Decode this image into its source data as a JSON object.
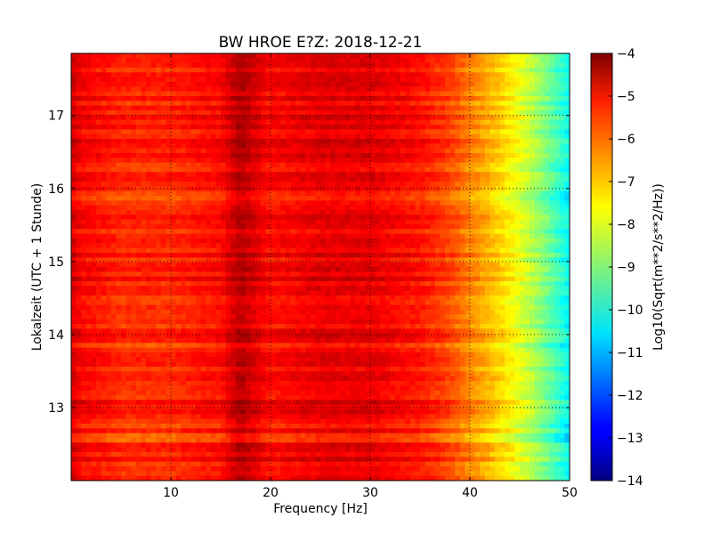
{
  "chart_data": {
    "type": "heatmap",
    "title": "BW HROE E?Z: 2018-12-21",
    "xlabel": "Frequency [Hz]",
    "ylabel": "Lokalzeit (UTC + 1 Stunde)",
    "xlim": [
      0,
      50
    ],
    "ylim": [
      17.85,
      12.0
    ],
    "x_ticks": [
      10,
      20,
      30,
      40,
      50
    ],
    "y_ticks": [
      13,
      14,
      15,
      16,
      17
    ],
    "grid": true,
    "colormap": "jet",
    "colorbar": {
      "label": "Log10(Sqrt(m**2/s**2/Hz))",
      "range": [
        -14,
        -4
      ],
      "ticks": [
        -4,
        -5,
        -6,
        -7,
        -8,
        -9,
        -10,
        -11,
        -12,
        -13,
        -14
      ]
    },
    "spectrum_profile": {
      "frequency_hz": [
        0,
        1,
        5,
        10,
        15,
        17,
        20,
        25,
        30,
        35,
        38,
        40,
        42,
        44,
        46,
        48,
        50
      ],
      "log10_amplitude": [
        -4.8,
        -5.2,
        -5.6,
        -5.6,
        -5.3,
        -4.5,
        -5.3,
        -5.0,
        -5.0,
        -5.4,
        -5.9,
        -6.5,
        -7.0,
        -7.6,
        -8.3,
        -9.2,
        -10.2
      ]
    }
  }
}
